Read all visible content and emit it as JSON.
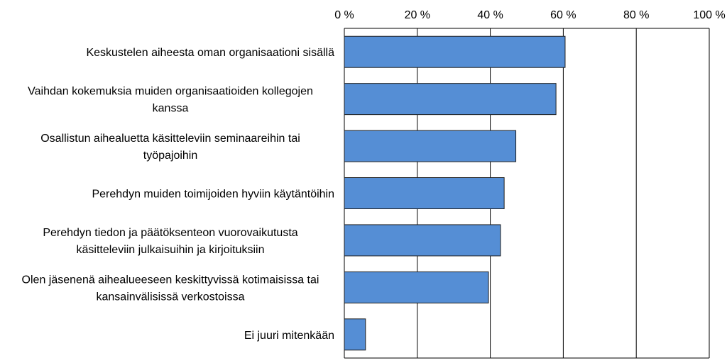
{
  "chart_data": {
    "type": "bar",
    "orientation": "horizontal",
    "title": "",
    "xlabel": "",
    "ylabel": "",
    "xlim": [
      0,
      100
    ],
    "x_ticks": [
      "0 %",
      "20 %",
      "40 %",
      "60 %",
      "80 %",
      "100 %"
    ],
    "x_tick_values": [
      0,
      20,
      40,
      60,
      80,
      100
    ],
    "x_axis_position": "top",
    "grid": true,
    "bar_color": "#558ED5",
    "categories": [
      [
        "Keskustelen aiheesta oman organisaationi sisällä"
      ],
      [
        "Vaihdan kokemuksia muiden organisaatioiden kollegojen",
        "kanssa"
      ],
      [
        "Osallistun aihealuetta käsitteleviin seminaareihin tai",
        "työpajoihin"
      ],
      [
        "Perehdyn muiden toimijoiden hyviin käytäntöihin"
      ],
      [
        "Perehdyn tiedon ja päätöksenteon vuorovaikutusta",
        "käsitteleviin julkaisuihin ja kirjoituksiin"
      ],
      [
        "Olen jäsenenä aihealueeseen keskittyvissä kotimaisissa tai",
        "kansainvälisissä verkostoissa"
      ],
      [
        "Ei juuri mitenkään"
      ]
    ],
    "values": [
      60.5,
      58,
      47,
      43.8,
      42.8,
      39.5,
      5.8
    ]
  }
}
